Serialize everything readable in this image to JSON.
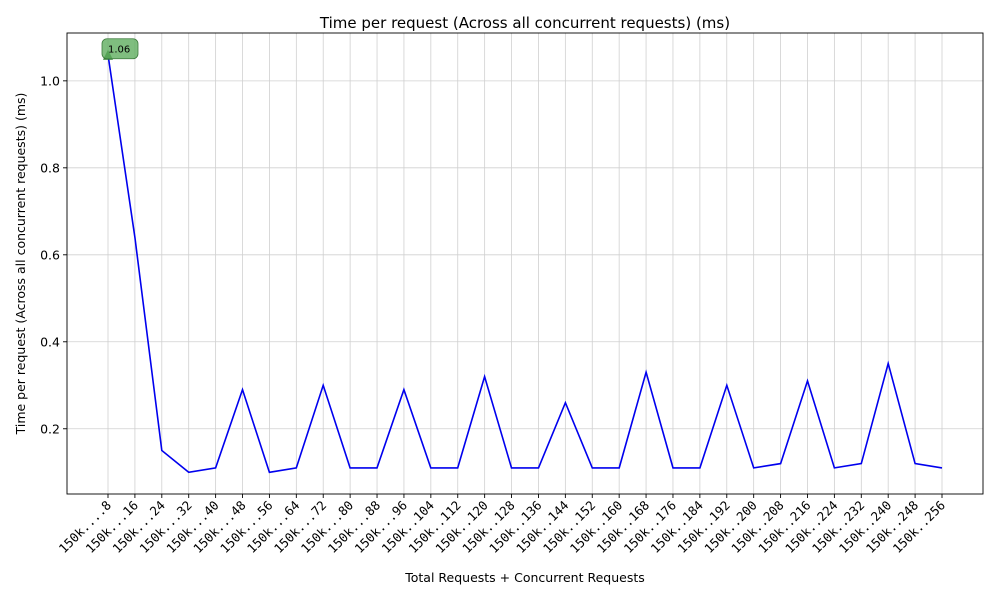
{
  "chart_data": {
    "type": "line",
    "title": "Time per request (Across all concurrent requests) (ms)",
    "xlabel": "Total Requests + Concurrent Requests",
    "ylabel": "Time per request (Across all concurrent requests) (ms)",
    "categories": [
      "150k....8",
      "150k...16",
      "150k...24",
      "150k...32",
      "150k...40",
      "150k...48",
      "150k...56",
      "150k...64",
      "150k...72",
      "150k...80",
      "150k...88",
      "150k...96",
      "150k..104",
      "150k..112",
      "150k..120",
      "150k..128",
      "150k..136",
      "150k..144",
      "150k..152",
      "150k..160",
      "150k..168",
      "150k..176",
      "150k..184",
      "150k..192",
      "150k..200",
      "150k..208",
      "150k..216",
      "150k..224",
      "150k..232",
      "150k..240",
      "150k..248",
      "150k..256"
    ],
    "series": [
      {
        "values": [
          1.06,
          0.64,
          0.15,
          0.1,
          0.11,
          0.29,
          0.1,
          0.11,
          0.3,
          0.11,
          0.11,
          0.29,
          0.11,
          0.11,
          0.32,
          0.11,
          0.11,
          0.26,
          0.11,
          0.11,
          0.33,
          0.11,
          0.11,
          0.3,
          0.11,
          0.12,
          0.31,
          0.11,
          0.12,
          0.35,
          0.12,
          0.11
        ],
        "color": "#0000ee"
      }
    ],
    "ylim": [
      0.05,
      1.11
    ],
    "yticks": [
      0.2,
      0.4,
      0.6,
      0.8,
      1.0
    ],
    "ytick_labels": [
      "0.2",
      "0.4",
      "0.6",
      "0.8",
      "1.0"
    ],
    "grid": true,
    "annotation": {
      "label": "1.06",
      "index": 0,
      "value": 1.06,
      "color": "#5fae5f"
    }
  }
}
